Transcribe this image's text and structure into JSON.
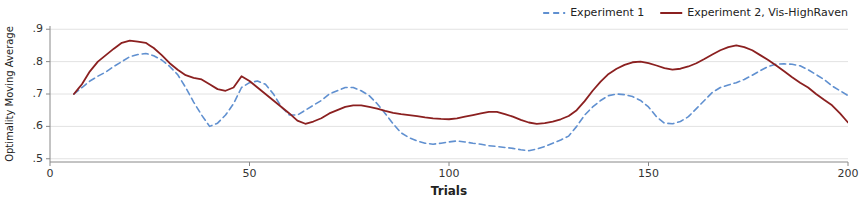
{
  "chart_data": {
    "type": "line",
    "xlabel": "Trials",
    "ylabel": "Optimality Moving Average",
    "xlim": [
      0,
      200
    ],
    "ylim": [
      0.49,
      0.91
    ],
    "xticks": [
      0,
      50,
      100,
      150,
      200
    ],
    "yticks": [
      {
        "value": 0.5,
        "label": ".5"
      },
      {
        "value": 0.6,
        "label": ".6"
      },
      {
        "value": 0.7,
        "label": ".7"
      },
      {
        "value": 0.8,
        "label": ".8"
      },
      {
        "value": 0.9,
        "label": ".9"
      }
    ],
    "grid": true,
    "legend": "upper right",
    "x": [
      6,
      7,
      8,
      9,
      10,
      12,
      14,
      16,
      18,
      20,
      22,
      24,
      25,
      26,
      28,
      30,
      32,
      34,
      36,
      38,
      40,
      42,
      44,
      46,
      48,
      50,
      52,
      54,
      56,
      58,
      60,
      62,
      64,
      66,
      68,
      70,
      72,
      74,
      76,
      78,
      80,
      82,
      84,
      86,
      88,
      90,
      92,
      94,
      96,
      98,
      100,
      102,
      104,
      106,
      108,
      110,
      112,
      114,
      116,
      118,
      120,
      122,
      124,
      126,
      128,
      130,
      132,
      134,
      136,
      138,
      140,
      142,
      144,
      146,
      148,
      150,
      152,
      154,
      156,
      158,
      160,
      162,
      164,
      166,
      168,
      170,
      172,
      174,
      176,
      178,
      180,
      182,
      184,
      186,
      188,
      190,
      192,
      194,
      196,
      198,
      200
    ],
    "series": [
      {
        "name": "Experiment 1",
        "color": "#6090d0",
        "line_style": "dashed",
        "values": [
          0.7,
          0.71,
          0.72,
          0.73,
          0.74,
          0.755,
          0.768,
          0.785,
          0.8,
          0.815,
          0.822,
          0.825,
          0.822,
          0.818,
          0.805,
          0.785,
          0.76,
          0.72,
          0.675,
          0.635,
          0.6,
          0.61,
          0.635,
          0.67,
          0.72,
          0.735,
          0.74,
          0.73,
          0.7,
          0.66,
          0.635,
          0.635,
          0.65,
          0.665,
          0.68,
          0.7,
          0.71,
          0.72,
          0.72,
          0.71,
          0.695,
          0.67,
          0.64,
          0.608,
          0.58,
          0.565,
          0.555,
          0.548,
          0.545,
          0.548,
          0.552,
          0.555,
          0.552,
          0.548,
          0.545,
          0.54,
          0.538,
          0.535,
          0.532,
          0.528,
          0.525,
          0.53,
          0.538,
          0.548,
          0.558,
          0.57,
          0.6,
          0.635,
          0.66,
          0.68,
          0.695,
          0.7,
          0.698,
          0.692,
          0.68,
          0.66,
          0.63,
          0.61,
          0.608,
          0.615,
          0.63,
          0.655,
          0.68,
          0.705,
          0.72,
          0.728,
          0.735,
          0.745,
          0.758,
          0.772,
          0.785,
          0.792,
          0.793,
          0.792,
          0.787,
          0.775,
          0.76,
          0.745,
          0.725,
          0.71,
          0.695
        ]
      },
      {
        "name": "Experiment 2, Vis-HighRaven",
        "color": "#8b2020",
        "line_style": "solid",
        "values": [
          0.7,
          0.715,
          0.73,
          0.75,
          0.77,
          0.8,
          0.82,
          0.84,
          0.858,
          0.865,
          0.862,
          0.858,
          0.85,
          0.842,
          0.82,
          0.795,
          0.775,
          0.758,
          0.75,
          0.745,
          0.73,
          0.715,
          0.71,
          0.72,
          0.755,
          0.74,
          0.72,
          0.7,
          0.68,
          0.66,
          0.64,
          0.618,
          0.608,
          0.615,
          0.625,
          0.64,
          0.65,
          0.66,
          0.665,
          0.665,
          0.66,
          0.655,
          0.648,
          0.642,
          0.638,
          0.635,
          0.632,
          0.628,
          0.625,
          0.623,
          0.622,
          0.625,
          0.63,
          0.635,
          0.64,
          0.645,
          0.645,
          0.638,
          0.63,
          0.62,
          0.612,
          0.608,
          0.61,
          0.615,
          0.622,
          0.632,
          0.65,
          0.678,
          0.71,
          0.738,
          0.762,
          0.778,
          0.79,
          0.798,
          0.8,
          0.795,
          0.788,
          0.78,
          0.775,
          0.778,
          0.785,
          0.795,
          0.808,
          0.822,
          0.835,
          0.845,
          0.85,
          0.845,
          0.835,
          0.82,
          0.805,
          0.788,
          0.77,
          0.752,
          0.735,
          0.72,
          0.7,
          0.682,
          0.665,
          0.64,
          0.612
        ]
      }
    ]
  }
}
